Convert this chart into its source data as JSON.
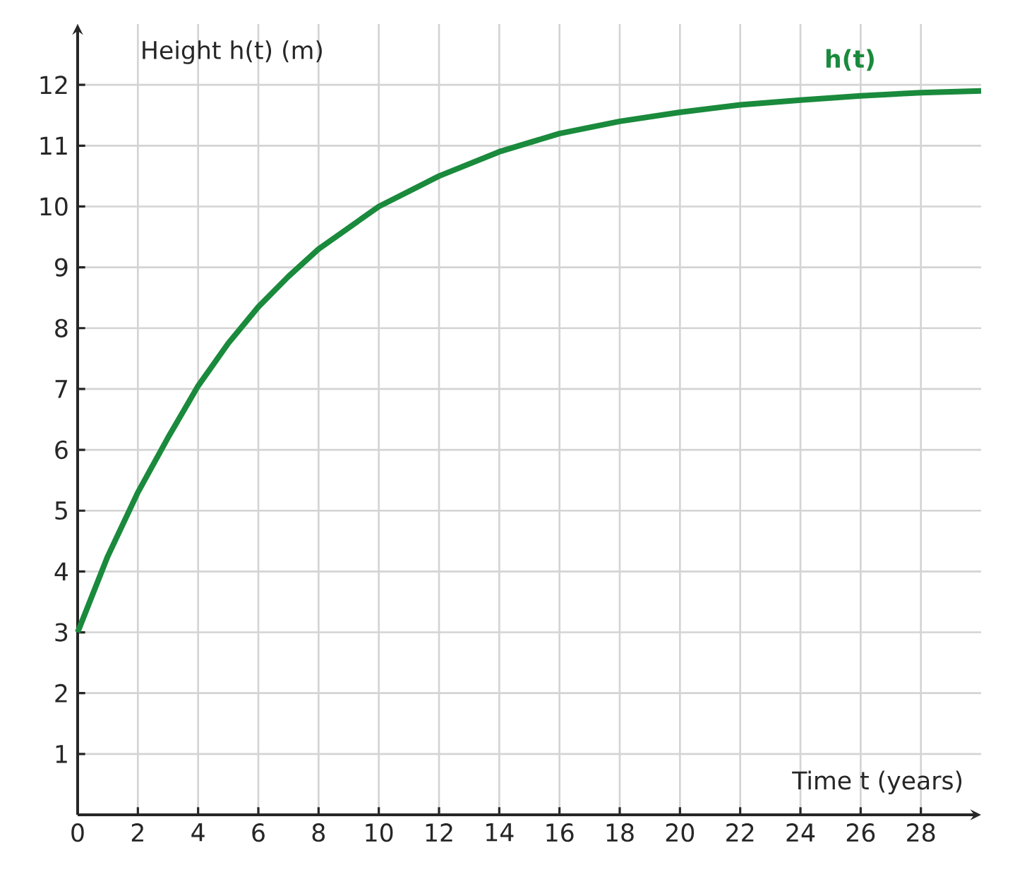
{
  "chart_data": {
    "type": "line",
    "xlabel": "Time t (years)",
    "ylabel": "Height h(t) (m)",
    "x": [
      0,
      1,
      2,
      3,
      4,
      5,
      6,
      7,
      8,
      9,
      10,
      12,
      14,
      16,
      18,
      20,
      22,
      24,
      26,
      28,
      30
    ],
    "series": [
      {
        "name": "h(t)",
        "color": "#1a8a3c",
        "values": [
          3,
          4.25,
          5.3,
          6.2,
          7.05,
          7.75,
          8.35,
          8.85,
          9.3,
          9.65,
          10.0,
          10.5,
          10.9,
          11.2,
          11.4,
          11.55,
          11.67,
          11.75,
          11.82,
          11.87,
          11.9
        ]
      }
    ],
    "xlim": [
      0,
      30
    ],
    "ylim": [
      0,
      13
    ],
    "xticks": [
      0,
      2,
      4,
      6,
      8,
      10,
      12,
      14,
      16,
      18,
      20,
      22,
      24,
      26,
      28
    ],
    "yticks": [
      1,
      2,
      3,
      4,
      5,
      6,
      7,
      8,
      9,
      10,
      11,
      12
    ],
    "grid": true,
    "legend": false,
    "marker": "none",
    "line_style": "solid"
  }
}
